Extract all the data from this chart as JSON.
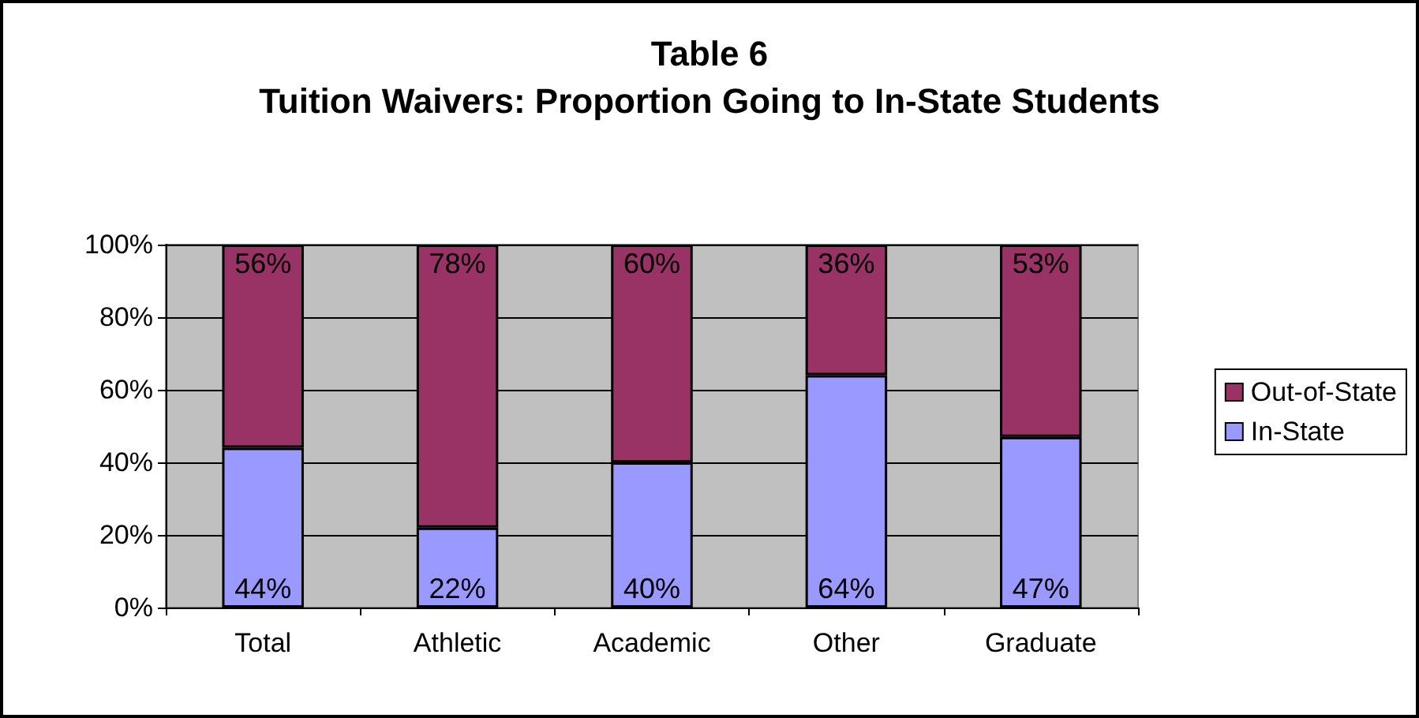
{
  "chart_data": {
    "type": "bar",
    "title": "Table 6",
    "subtitle": "Tuition Waivers: Proportion Going to In-State Students",
    "categories": [
      "Total",
      "Athletic",
      "Academic",
      "Other",
      "Graduate"
    ],
    "stacked": true,
    "series": [
      {
        "name": "In-State",
        "color": "#9999ff",
        "values": [
          44,
          22,
          40,
          64,
          47
        ],
        "value_labels": [
          "44%",
          "22%",
          "40%",
          "64%",
          "47%"
        ]
      },
      {
        "name": "Out-of-State",
        "color": "#993366",
        "values": [
          56,
          78,
          60,
          36,
          53
        ],
        "value_labels": [
          "56%",
          "78%",
          "60%",
          "36%",
          "53%"
        ]
      }
    ],
    "ylim": [
      0,
      100
    ],
    "yticks": [
      {
        "value": 0,
        "label": "0%"
      },
      {
        "value": 20,
        "label": "20%"
      },
      {
        "value": 40,
        "label": "40%"
      },
      {
        "value": 60,
        "label": "60%"
      },
      {
        "value": 80,
        "label": "80%"
      },
      {
        "value": 100,
        "label": "100%"
      }
    ],
    "grid": "y",
    "legend": "right"
  }
}
